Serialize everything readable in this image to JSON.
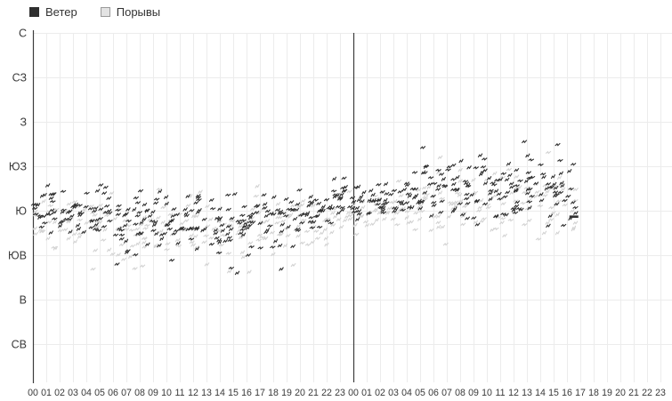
{
  "legend": {
    "items": [
      {
        "label": "Ветер",
        "color": "#2f2f2f",
        "border": "#2f2f2f"
      },
      {
        "label": "Порывы",
        "color": "#e3e3e3",
        "border": "#9a9a9a"
      }
    ]
  },
  "chart_data": {
    "type": "scatter",
    "title": "",
    "xlabel": "",
    "ylabel": "",
    "grid": true,
    "legend_position": "top-left",
    "y_axis": {
      "labels": [
        "С",
        "СЗ",
        "З",
        "ЮЗ",
        "Ю",
        "ЮВ",
        "В",
        "СВ"
      ],
      "degrees": [
        360,
        315,
        270,
        225,
        180,
        135,
        90,
        45
      ]
    },
    "x_axis": {
      "labels": [
        "00",
        "01",
        "02",
        "03",
        "04",
        "05",
        "06",
        "07",
        "08",
        "09",
        "10",
        "11",
        "12",
        "13",
        "14",
        "15",
        "16",
        "17",
        "18",
        "19",
        "20",
        "21",
        "22",
        "23",
        "00",
        "01",
        "02",
        "03",
        "04",
        "05",
        "06",
        "07",
        "08",
        "09",
        "10",
        "11",
        "12",
        "13",
        "14",
        "15",
        "16",
        "17",
        "18",
        "19",
        "20",
        "21",
        "22",
        "23"
      ]
    },
    "divider_hour_index": 24,
    "data_end_hour": 40.7,
    "seed": 1337,
    "series": [
      {
        "name": "Ветер",
        "color": "#2f2f2f",
        "points_per_hour": 12,
        "hourly_mean_deg": [
          184,
          183,
          180,
          178,
          177,
          176,
          172,
          171,
          170,
          172,
          173,
          173,
          171,
          169,
          168,
          169,
          172,
          173,
          174,
          177,
          179,
          184,
          187,
          190,
          189,
          188,
          189,
          192,
          194,
          200,
          202,
          203,
          204,
          203,
          202,
          200,
          200,
          201,
          202,
          203,
          200
        ],
        "hourly_spread_deg": [
          12,
          12,
          12,
          12,
          12,
          14,
          14,
          14,
          14,
          14,
          14,
          14,
          14,
          14,
          14,
          14,
          14,
          14,
          14,
          14,
          10,
          10,
          10,
          10,
          10,
          10,
          10,
          10,
          10,
          15,
          15,
          15,
          15,
          15,
          15,
          15,
          15,
          15,
          15,
          15,
          15
        ],
        "outliers": [
          [
            6.3,
            126
          ],
          [
            10.4,
            130
          ],
          [
            14.85,
            122
          ],
          [
            15.3,
            117
          ],
          [
            18.6,
            121
          ],
          [
            23.3,
            213
          ],
          [
            29.2,
            244
          ],
          [
            33.5,
            236
          ],
          [
            36.8,
            250
          ],
          [
            39.3,
            247
          ],
          [
            39.6,
            208
          ]
        ],
        "last_reading": {
          "t": 40.45,
          "deg": 174
        }
      },
      {
        "name": "Порывы",
        "color": "#d2d2d2",
        "points_per_hour": 9,
        "hourly_mean_deg": [
          172,
          171,
          169,
          168,
          167,
          165,
          162,
          160,
          160,
          162,
          163,
          163,
          161,
          159,
          158,
          159,
          162,
          163,
          164,
          167,
          169,
          174,
          177,
          180,
          179,
          178,
          179,
          182,
          184,
          190,
          192,
          193,
          194,
          193,
          192,
          190,
          190,
          191,
          192,
          193,
          190
        ],
        "hourly_spread_deg": [
          14,
          14,
          14,
          14,
          14,
          16,
          16,
          16,
          16,
          16,
          16,
          16,
          16,
          16,
          16,
          16,
          16,
          16,
          16,
          16,
          12,
          12,
          12,
          12,
          12,
          12,
          12,
          12,
          12,
          17,
          17,
          17,
          17,
          17,
          17,
          17,
          17,
          17,
          17,
          17,
          17
        ],
        "outliers": [
          [
            4.5,
            121
          ],
          [
            8.2,
            124
          ],
          [
            16.2,
            118
          ],
          [
            19.5,
            125
          ],
          [
            30.5,
            234
          ],
          [
            38.6,
            239
          ]
        ],
        "last_reading": null
      }
    ],
    "style": {
      "grid_color": "#ececec",
      "axis_color": "#3c3c3c",
      "tick_label_color": "#3a3a3a"
    }
  }
}
